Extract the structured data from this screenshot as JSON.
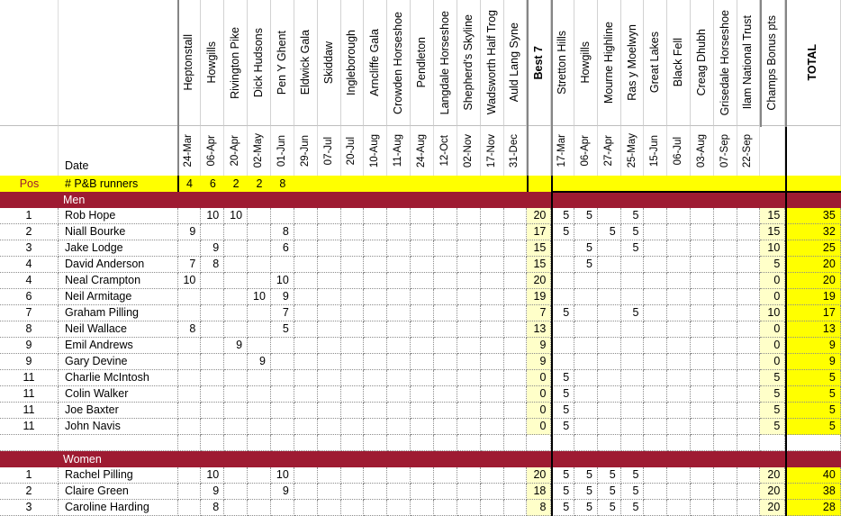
{
  "colors": {
    "maroon": "#9E1B32",
    "yellow": "#FFFF00",
    "cream": "#FFFFC9"
  },
  "labels": {
    "pos": "Pos",
    "runners": "# P&B runners",
    "date": "Date",
    "best7": "Best 7",
    "bonus": "Champs Bonus pts",
    "total": "TOTAL"
  },
  "races_left": [
    {
      "name": "Heptonstall",
      "date": "24-Mar"
    },
    {
      "name": "Howgills",
      "date": "06-Apr"
    },
    {
      "name": "Rivington Pike",
      "date": "20-Apr"
    },
    {
      "name": "Dick Hudsons",
      "date": "02-May"
    },
    {
      "name": "Pen Y Ghent",
      "date": "01-Jun"
    },
    {
      "name": "Eldwick Gala",
      "date": "29-Jun"
    },
    {
      "name": "Skiddaw",
      "date": "07-Jul"
    },
    {
      "name": "Ingleborough",
      "date": "20-Jul"
    },
    {
      "name": "Arncliffe Gala",
      "date": "10-Aug"
    },
    {
      "name": "Crowden Horseshoe",
      "date": "11-Aug"
    },
    {
      "name": "Pendleton",
      "date": "24-Aug"
    },
    {
      "name": "Langdale Horseshoe",
      "date": "12-Oct"
    },
    {
      "name": "Shepherd's Skyline",
      "date": "02-Nov"
    },
    {
      "name": "Wadsworth Half Trog",
      "date": "17-Nov"
    },
    {
      "name": "Auld Lang Syne",
      "date": "31-Dec"
    }
  ],
  "races_right": [
    {
      "name": "Stretton Hills",
      "date": "17-Mar"
    },
    {
      "name": "Howgills",
      "date": "06-Apr"
    },
    {
      "name": "Mourne Highline",
      "date": "27-Apr"
    },
    {
      "name": "Ras y Moelwyn",
      "date": "25-May"
    },
    {
      "name": "Great Lakes",
      "date": "15-Jun"
    },
    {
      "name": "Black Fell",
      "date": "06-Jul"
    },
    {
      "name": "Creag Dhubh",
      "date": "03-Aug"
    },
    {
      "name": "Grisedale Horseshoe",
      "date": "07-Sep"
    },
    {
      "name": "Ilam National Trust",
      "date": "22-Sep"
    }
  ],
  "pb_counts": [
    "4",
    "6",
    "2",
    "2",
    "8",
    "",
    "",
    "",
    "",
    "",
    "",
    "",
    "",
    "",
    ""
  ],
  "sections": [
    {
      "title": "Men",
      "rows": [
        {
          "pos": "1",
          "name": "Rob Hope",
          "left": [
            "",
            "10",
            "10",
            "",
            "",
            "",
            "",
            "",
            "",
            "",
            "",
            "",
            "",
            "",
            ""
          ],
          "best7": "20",
          "right": [
            "5",
            "5",
            "",
            "5",
            "",
            "",
            "",
            "",
            ""
          ],
          "bonus": "15",
          "total": "35"
        },
        {
          "pos": "2",
          "name": "Niall Bourke",
          "left": [
            "9",
            "",
            "",
            "",
            "8",
            "",
            "",
            "",
            "",
            "",
            "",
            "",
            "",
            "",
            ""
          ],
          "best7": "17",
          "right": [
            "5",
            "",
            "5",
            "5",
            "",
            "",
            "",
            "",
            ""
          ],
          "bonus": "15",
          "total": "32"
        },
        {
          "pos": "3",
          "name": "Jake Lodge",
          "left": [
            "",
            "9",
            "",
            "",
            "6",
            "",
            "",
            "",
            "",
            "",
            "",
            "",
            "",
            "",
            ""
          ],
          "best7": "15",
          "right": [
            "",
            "5",
            "",
            "5",
            "",
            "",
            "",
            "",
            ""
          ],
          "bonus": "10",
          "total": "25"
        },
        {
          "pos": "4",
          "name": "David Anderson",
          "left": [
            "7",
            "8",
            "",
            "",
            "",
            "",
            "",
            "",
            "",
            "",
            "",
            "",
            "",
            "",
            ""
          ],
          "best7": "15",
          "right": [
            "",
            "5",
            "",
            "",
            "",
            "",
            "",
            "",
            ""
          ],
          "bonus": "5",
          "total": "20"
        },
        {
          "pos": "4",
          "name": "Neal Crampton",
          "left": [
            "10",
            "",
            "",
            "",
            "10",
            "",
            "",
            "",
            "",
            "",
            "",
            "",
            "",
            "",
            ""
          ],
          "best7": "20",
          "right": [
            "",
            "",
            "",
            "",
            "",
            "",
            "",
            "",
            ""
          ],
          "bonus": "0",
          "total": "20"
        },
        {
          "pos": "6",
          "name": "Neil Armitage",
          "left": [
            "",
            "",
            "",
            "10",
            "9",
            "",
            "",
            "",
            "",
            "",
            "",
            "",
            "",
            "",
            ""
          ],
          "best7": "19",
          "right": [
            "",
            "",
            "",
            "",
            "",
            "",
            "",
            "",
            ""
          ],
          "bonus": "0",
          "total": "19"
        },
        {
          "pos": "7",
          "name": "Graham Pilling",
          "left": [
            "",
            "",
            "",
            "",
            "7",
            "",
            "",
            "",
            "",
            "",
            "",
            "",
            "",
            "",
            ""
          ],
          "best7": "7",
          "right": [
            "5",
            "",
            "",
            "5",
            "",
            "",
            "",
            "",
            ""
          ],
          "bonus": "10",
          "total": "17"
        },
        {
          "pos": "8",
          "name": "Neil Wallace",
          "left": [
            "8",
            "",
            "",
            "",
            "5",
            "",
            "",
            "",
            "",
            "",
            "",
            "",
            "",
            "",
            ""
          ],
          "best7": "13",
          "right": [
            "",
            "",
            "",
            "",
            "",
            "",
            "",
            "",
            ""
          ],
          "bonus": "0",
          "total": "13"
        },
        {
          "pos": "9",
          "name": "Emil Andrews",
          "left": [
            "",
            "",
            "9",
            "",
            "",
            "",
            "",
            "",
            "",
            "",
            "",
            "",
            "",
            "",
            ""
          ],
          "best7": "9",
          "right": [
            "",
            "",
            "",
            "",
            "",
            "",
            "",
            "",
            ""
          ],
          "bonus": "0",
          "total": "9"
        },
        {
          "pos": "9",
          "name": "Gary Devine",
          "left": [
            "",
            "",
            "",
            "9",
            "",
            "",
            "",
            "",
            "",
            "",
            "",
            "",
            "",
            "",
            ""
          ],
          "best7": "9",
          "right": [
            "",
            "",
            "",
            "",
            "",
            "",
            "",
            "",
            ""
          ],
          "bonus": "0",
          "total": "9"
        },
        {
          "pos": "11",
          "name": "Charlie McIntosh",
          "left": [
            "",
            "",
            "",
            "",
            "",
            "",
            "",
            "",
            "",
            "",
            "",
            "",
            "",
            "",
            ""
          ],
          "best7": "0",
          "right": [
            "5",
            "",
            "",
            "",
            "",
            "",
            "",
            "",
            ""
          ],
          "bonus": "5",
          "total": "5"
        },
        {
          "pos": "11",
          "name": "Colin Walker",
          "left": [
            "",
            "",
            "",
            "",
            "",
            "",
            "",
            "",
            "",
            "",
            "",
            "",
            "",
            "",
            ""
          ],
          "best7": "0",
          "right": [
            "5",
            "",
            "",
            "",
            "",
            "",
            "",
            "",
            ""
          ],
          "bonus": "5",
          "total": "5"
        },
        {
          "pos": "11",
          "name": "Joe Baxter",
          "left": [
            "",
            "",
            "",
            "",
            "",
            "",
            "",
            "",
            "",
            "",
            "",
            "",
            "",
            "",
            ""
          ],
          "best7": "0",
          "right": [
            "5",
            "",
            "",
            "",
            "",
            "",
            "",
            "",
            ""
          ],
          "bonus": "5",
          "total": "5"
        },
        {
          "pos": "11",
          "name": "John Navis",
          "left": [
            "",
            "",
            "",
            "",
            "",
            "",
            "",
            "",
            "",
            "",
            "",
            "",
            "",
            "",
            ""
          ],
          "best7": "0",
          "right": [
            "5",
            "",
            "",
            "",
            "",
            "",
            "",
            "",
            ""
          ],
          "bonus": "5",
          "total": "5"
        }
      ]
    },
    {
      "title": "Women",
      "rows": [
        {
          "pos": "1",
          "name": "Rachel Pilling",
          "left": [
            "",
            "10",
            "",
            "",
            "10",
            "",
            "",
            "",
            "",
            "",
            "",
            "",
            "",
            "",
            ""
          ],
          "best7": "20",
          "right": [
            "5",
            "5",
            "5",
            "5",
            "",
            "",
            "",
            "",
            ""
          ],
          "bonus": "20",
          "total": "40"
        },
        {
          "pos": "2",
          "name": "Claire Green",
          "left": [
            "",
            "9",
            "",
            "",
            "9",
            "",
            "",
            "",
            "",
            "",
            "",
            "",
            "",
            "",
            ""
          ],
          "best7": "18",
          "right": [
            "5",
            "5",
            "5",
            "5",
            "",
            "",
            "",
            "",
            ""
          ],
          "bonus": "20",
          "total": "38"
        },
        {
          "pos": "3",
          "name": "Caroline Harding",
          "left": [
            "",
            "8",
            "",
            "",
            "",
            "",
            "",
            "",
            "",
            "",
            "",
            "",
            "",
            "",
            ""
          ],
          "best7": "8",
          "right": [
            "5",
            "5",
            "5",
            "5",
            "",
            "",
            "",
            "",
            ""
          ],
          "bonus": "20",
          "total": "28"
        }
      ]
    }
  ]
}
